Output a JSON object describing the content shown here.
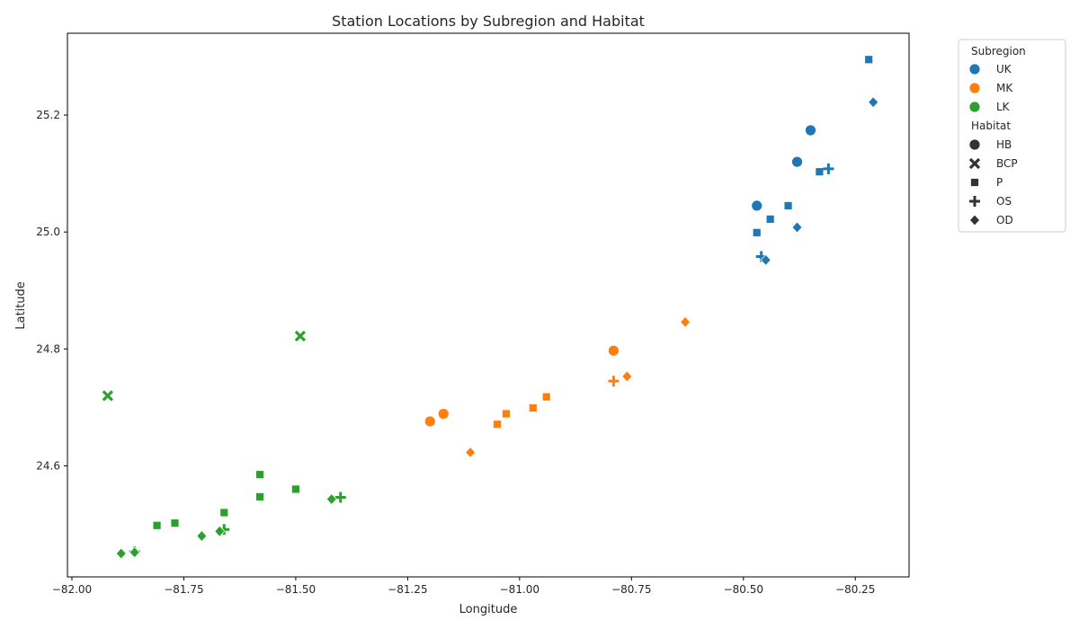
{
  "chart_data": {
    "type": "scatter",
    "title": "Station Locations by Subregion and Habitat",
    "xlabel": "Longitude",
    "ylabel": "Latitude",
    "xlim": [
      -82.01,
      -80.13
    ],
    "ylim": [
      24.41,
      25.34
    ],
    "xticks": [
      -82.0,
      -81.75,
      -81.5,
      -81.25,
      -81.0,
      -80.75,
      -80.5,
      -80.25
    ],
    "xtick_labels": [
      "−82.00",
      "−81.75",
      "−81.50",
      "−81.25",
      "−81.00",
      "−80.75",
      "−80.50",
      "−80.25"
    ],
    "yticks": [
      24.6,
      24.8,
      25.0,
      25.2
    ],
    "ytick_labels": [
      "24.6",
      "24.8",
      "25.0",
      "25.2"
    ],
    "grid": false,
    "legend_position": "outside-top-right",
    "legend": {
      "hue_title": "Subregion",
      "hue_entries": [
        {
          "label": "UK",
          "color": "#1f77b4"
        },
        {
          "label": "MK",
          "color": "#ff7f0e"
        },
        {
          "label": "LK",
          "color": "#2ca02c"
        }
      ],
      "style_title": "Habitat",
      "style_entries": [
        {
          "label": "HB",
          "marker": "circle"
        },
        {
          "label": "BCP",
          "marker": "x"
        },
        {
          "label": "P",
          "marker": "square"
        },
        {
          "label": "OS",
          "marker": "plus"
        },
        {
          "label": "OD",
          "marker": "diamond"
        }
      ]
    },
    "points": [
      {
        "subregion": "UK",
        "habitat": "P",
        "x": -80.22,
        "y": 25.295
      },
      {
        "subregion": "UK",
        "habitat": "OD",
        "x": -80.21,
        "y": 25.222
      },
      {
        "subregion": "UK",
        "habitat": "HB",
        "x": -80.35,
        "y": 25.174
      },
      {
        "subregion": "UK",
        "habitat": "HB",
        "x": -80.38,
        "y": 25.12
      },
      {
        "subregion": "UK",
        "habitat": "P",
        "x": -80.33,
        "y": 25.103
      },
      {
        "subregion": "UK",
        "habitat": "OS",
        "x": -80.31,
        "y": 25.108
      },
      {
        "subregion": "UK",
        "habitat": "HB",
        "x": -80.47,
        "y": 25.045
      },
      {
        "subregion": "UK",
        "habitat": "P",
        "x": -80.4,
        "y": 25.045
      },
      {
        "subregion": "UK",
        "habitat": "P",
        "x": -80.44,
        "y": 25.022
      },
      {
        "subregion": "UK",
        "habitat": "OD",
        "x": -80.38,
        "y": 25.008
      },
      {
        "subregion": "UK",
        "habitat": "P",
        "x": -80.47,
        "y": 24.999
      },
      {
        "subregion": "UK",
        "habitat": "OS",
        "x": -80.46,
        "y": 24.958
      },
      {
        "subregion": "UK",
        "habitat": "OD",
        "x": -80.45,
        "y": 24.952
      },
      {
        "subregion": "MK",
        "habitat": "OD",
        "x": -80.63,
        "y": 24.846
      },
      {
        "subregion": "MK",
        "habitat": "HB",
        "x": -80.79,
        "y": 24.797
      },
      {
        "subregion": "MK",
        "habitat": "OD",
        "x": -80.76,
        "y": 24.753
      },
      {
        "subregion": "MK",
        "habitat": "OS",
        "x": -80.79,
        "y": 24.745
      },
      {
        "subregion": "MK",
        "habitat": "P",
        "x": -80.94,
        "y": 24.718
      },
      {
        "subregion": "MK",
        "habitat": "P",
        "x": -80.97,
        "y": 24.699
      },
      {
        "subregion": "MK",
        "habitat": "HB",
        "x": -81.17,
        "y": 24.689
      },
      {
        "subregion": "MK",
        "habitat": "P",
        "x": -81.03,
        "y": 24.689
      },
      {
        "subregion": "MK",
        "habitat": "HB",
        "x": -81.2,
        "y": 24.676
      },
      {
        "subregion": "MK",
        "habitat": "P",
        "x": -81.05,
        "y": 24.671
      },
      {
        "subregion": "MK",
        "habitat": "OD",
        "x": -81.11,
        "y": 24.623
      },
      {
        "subregion": "LK",
        "habitat": "BCP",
        "x": -81.49,
        "y": 24.822
      },
      {
        "subregion": "LK",
        "habitat": "BCP",
        "x": -81.92,
        "y": 24.72
      },
      {
        "subregion": "LK",
        "habitat": "P",
        "x": -81.58,
        "y": 24.585
      },
      {
        "subregion": "LK",
        "habitat": "P",
        "x": -81.5,
        "y": 24.56
      },
      {
        "subregion": "LK",
        "habitat": "P",
        "x": -81.58,
        "y": 24.547
      },
      {
        "subregion": "LK",
        "habitat": "OS",
        "x": -81.4,
        "y": 24.546
      },
      {
        "subregion": "LK",
        "habitat": "OD",
        "x": -81.42,
        "y": 24.543
      },
      {
        "subregion": "LK",
        "habitat": "P",
        "x": -81.66,
        "y": 24.52
      },
      {
        "subregion": "LK",
        "habitat": "P",
        "x": -81.77,
        "y": 24.502
      },
      {
        "subregion": "LK",
        "habitat": "P",
        "x": -81.81,
        "y": 24.498
      },
      {
        "subregion": "LK",
        "habitat": "OS",
        "x": -81.66,
        "y": 24.491
      },
      {
        "subregion": "LK",
        "habitat": "OD",
        "x": -81.67,
        "y": 24.488
      },
      {
        "subregion": "LK",
        "habitat": "OD",
        "x": -81.71,
        "y": 24.48
      },
      {
        "subregion": "LK",
        "habitat": "OS",
        "x": -81.86,
        "y": 24.453
      },
      {
        "subregion": "LK",
        "habitat": "OD",
        "x": -81.86,
        "y": 24.452
      },
      {
        "subregion": "LK",
        "habitat": "OD",
        "x": -81.89,
        "y": 24.45
      }
    ]
  }
}
